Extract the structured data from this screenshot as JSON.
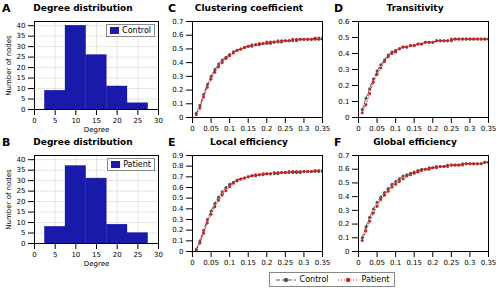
{
  "chart_data": [
    {
      "type": "histogram",
      "title": "Degree distribution",
      "annotations": [
        "A"
      ],
      "xlabel": "Degree",
      "ylabel": "Number of nodes",
      "bins": [
        2.5,
        7.5,
        12.5,
        17.5,
        22.5,
        27.5
      ],
      "series": [
        {
          "name": "Control",
          "color": "#1a1aaa",
          "values": [
            9,
            40,
            26,
            11,
            3
          ]
        }
      ],
      "xlim": [
        0,
        30
      ],
      "xticks": [
        0,
        5,
        10,
        15,
        20,
        25,
        30
      ],
      "ylim": [
        0,
        42
      ],
      "yticks": [
        0,
        5,
        10,
        15,
        20,
        25,
        30,
        35,
        40
      ],
      "grid": true,
      "legend": "upper right"
    },
    {
      "type": "histogram",
      "title": "Degree distribution",
      "annotations": [
        "B"
      ],
      "xlabel": "Degree",
      "ylabel": "Number of nodes",
      "bins": [
        2.5,
        7.5,
        12.5,
        17.5,
        22.5,
        27.5
      ],
      "series": [
        {
          "name": "Patient",
          "color": "#1a1aaa",
          "values": [
            8,
            37,
            31,
            9,
            5
          ]
        }
      ],
      "xlim": [
        0,
        30
      ],
      "xticks": [
        0,
        5,
        10,
        15,
        20,
        25,
        30
      ],
      "ylim": [
        0,
        42
      ],
      "yticks": [
        0,
        5,
        10,
        15,
        20,
        25,
        30,
        35,
        40
      ],
      "grid": true,
      "legend": "upper right"
    },
    {
      "type": "line",
      "title": "Clustering coefficient",
      "annotations": [
        "C"
      ],
      "x": [
        0.01,
        0.02,
        0.03,
        0.04,
        0.05,
        0.06,
        0.07,
        0.08,
        0.09,
        0.1,
        0.11,
        0.12,
        0.13,
        0.14,
        0.15,
        0.16,
        0.17,
        0.18,
        0.19,
        0.2,
        0.21,
        0.22,
        0.23,
        0.24,
        0.25,
        0.26,
        0.27,
        0.28,
        0.29,
        0.3,
        0.31,
        0.32,
        0.33,
        0.34,
        0.35
      ],
      "series": [
        {
          "name": "Control",
          "color": "#555555",
          "line_style": "dashed",
          "marker": "o",
          "values": [
            0.03,
            0.09,
            0.17,
            0.24,
            0.3,
            0.35,
            0.39,
            0.42,
            0.44,
            0.46,
            0.48,
            0.49,
            0.5,
            0.51,
            0.52,
            0.52,
            0.53,
            0.53,
            0.54,
            0.54,
            0.54,
            0.55,
            0.55,
            0.55,
            0.56,
            0.56,
            0.56,
            0.56,
            0.57,
            0.57,
            0.57,
            0.57,
            0.57,
            0.57,
            0.57
          ]
        },
        {
          "name": "Patient",
          "color": "#cc2222",
          "line_style": "dotted",
          "marker": "o",
          "values": [
            0.02,
            0.07,
            0.15,
            0.22,
            0.28,
            0.33,
            0.37,
            0.4,
            0.43,
            0.45,
            0.47,
            0.49,
            0.5,
            0.51,
            0.52,
            0.53,
            0.53,
            0.54,
            0.54,
            0.55,
            0.55,
            0.55,
            0.56,
            0.56,
            0.56,
            0.56,
            0.57,
            0.57,
            0.57,
            0.57,
            0.57,
            0.57,
            0.58,
            0.58,
            0.58
          ]
        }
      ],
      "xlim": [
        0,
        0.35
      ],
      "xticks": [
        0,
        0.05,
        0.1,
        0.15,
        0.2,
        0.25,
        0.3,
        0.35
      ],
      "ylim": [
        0,
        0.7
      ],
      "yticks": [
        0,
        0.1,
        0.2,
        0.3,
        0.4,
        0.5,
        0.6,
        0.7
      ],
      "grid": false,
      "legend": "lower center"
    },
    {
      "type": "line",
      "title": "Transitivity",
      "annotations": [
        "D"
      ],
      "x": [
        0.01,
        0.02,
        0.03,
        0.04,
        0.05,
        0.06,
        0.07,
        0.08,
        0.09,
        0.1,
        0.11,
        0.12,
        0.13,
        0.14,
        0.15,
        0.16,
        0.17,
        0.18,
        0.19,
        0.2,
        0.21,
        0.22,
        0.23,
        0.24,
        0.25,
        0.26,
        0.27,
        0.28,
        0.29,
        0.3,
        0.31,
        0.32,
        0.33,
        0.34,
        0.35
      ],
      "series": [
        {
          "name": "Control",
          "color": "#555555",
          "line_style": "dashed",
          "marker": "o",
          "values": [
            0.05,
            0.12,
            0.18,
            0.24,
            0.29,
            0.33,
            0.36,
            0.39,
            0.41,
            0.42,
            0.43,
            0.44,
            0.44,
            0.45,
            0.45,
            0.46,
            0.46,
            0.47,
            0.47,
            0.47,
            0.48,
            0.48,
            0.48,
            0.48,
            0.48,
            0.49,
            0.49,
            0.49,
            0.49,
            0.49,
            0.49,
            0.49,
            0.49,
            0.49,
            0.49
          ]
        },
        {
          "name": "Patient",
          "color": "#cc2222",
          "line_style": "dotted",
          "marker": "o",
          "values": [
            0.03,
            0.08,
            0.15,
            0.22,
            0.27,
            0.31,
            0.35,
            0.38,
            0.4,
            0.41,
            0.43,
            0.44,
            0.44,
            0.45,
            0.45,
            0.46,
            0.46,
            0.47,
            0.47,
            0.47,
            0.48,
            0.48,
            0.48,
            0.48,
            0.49,
            0.49,
            0.49,
            0.49,
            0.49,
            0.49,
            0.49,
            0.49,
            0.49,
            0.49,
            0.49
          ]
        }
      ],
      "xlim": [
        0,
        0.35
      ],
      "xticks": [
        0,
        0.05,
        0.1,
        0.15,
        0.2,
        0.25,
        0.3,
        0.35
      ],
      "ylim": [
        0,
        0.6
      ],
      "yticks": [
        0,
        0.1,
        0.2,
        0.3,
        0.4,
        0.5,
        0.6
      ],
      "grid": false,
      "legend": "lower center"
    },
    {
      "type": "line",
      "title": "Local efficiency",
      "annotations": [
        "E"
      ],
      "x": [
        0.01,
        0.02,
        0.03,
        0.04,
        0.05,
        0.06,
        0.07,
        0.08,
        0.09,
        0.1,
        0.11,
        0.12,
        0.13,
        0.14,
        0.15,
        0.16,
        0.17,
        0.18,
        0.19,
        0.2,
        0.21,
        0.22,
        0.23,
        0.24,
        0.25,
        0.26,
        0.27,
        0.28,
        0.29,
        0.3,
        0.31,
        0.32,
        0.33,
        0.34,
        0.35
      ],
      "series": [
        {
          "name": "Control",
          "color": "#555555",
          "line_style": "dashed",
          "marker": "o",
          "values": [
            0.02,
            0.1,
            0.2,
            0.3,
            0.38,
            0.45,
            0.51,
            0.56,
            0.6,
            0.63,
            0.65,
            0.67,
            0.68,
            0.69,
            0.7,
            0.71,
            0.71,
            0.72,
            0.72,
            0.73,
            0.73,
            0.73,
            0.73,
            0.74,
            0.74,
            0.74,
            0.74,
            0.74,
            0.74,
            0.75,
            0.75,
            0.75,
            0.75,
            0.75,
            0.75
          ]
        },
        {
          "name": "Patient",
          "color": "#cc2222",
          "line_style": "dotted",
          "marker": "o",
          "values": [
            0.01,
            0.08,
            0.17,
            0.27,
            0.35,
            0.42,
            0.48,
            0.53,
            0.57,
            0.61,
            0.64,
            0.66,
            0.68,
            0.69,
            0.7,
            0.71,
            0.72,
            0.72,
            0.73,
            0.73,
            0.73,
            0.74,
            0.74,
            0.74,
            0.74,
            0.75,
            0.75,
            0.75,
            0.75,
            0.75,
            0.75,
            0.75,
            0.76,
            0.76,
            0.76
          ]
        }
      ],
      "xlim": [
        0,
        0.35
      ],
      "xticks": [
        0,
        0.05,
        0.1,
        0.15,
        0.2,
        0.25,
        0.3,
        0.35
      ],
      "ylim": [
        0,
        0.9
      ],
      "yticks": [
        0,
        0.1,
        0.2,
        0.3,
        0.4,
        0.5,
        0.6,
        0.7,
        0.8,
        0.9
      ],
      "grid": false,
      "legend": "lower center"
    },
    {
      "type": "line",
      "title": "Global efficiency",
      "annotations": [
        "F"
      ],
      "x": [
        0.01,
        0.02,
        0.03,
        0.04,
        0.05,
        0.06,
        0.07,
        0.08,
        0.09,
        0.1,
        0.11,
        0.12,
        0.13,
        0.14,
        0.15,
        0.16,
        0.17,
        0.18,
        0.19,
        0.2,
        0.21,
        0.22,
        0.23,
        0.24,
        0.25,
        0.26,
        0.27,
        0.28,
        0.29,
        0.3,
        0.31,
        0.32,
        0.33,
        0.34,
        0.35
      ],
      "series": [
        {
          "name": "Control",
          "color": "#555555",
          "line_style": "dashed",
          "marker": "o",
          "values": [
            0.1,
            0.18,
            0.25,
            0.31,
            0.36,
            0.4,
            0.43,
            0.46,
            0.49,
            0.51,
            0.53,
            0.55,
            0.56,
            0.57,
            0.58,
            0.59,
            0.6,
            0.6,
            0.61,
            0.61,
            0.62,
            0.62,
            0.62,
            0.63,
            0.63,
            0.63,
            0.63,
            0.64,
            0.64,
            0.64,
            0.64,
            0.64,
            0.64,
            0.65,
            0.65
          ]
        },
        {
          "name": "Patient",
          "color": "#cc2222",
          "line_style": "dotted",
          "marker": "o",
          "values": [
            0.08,
            0.15,
            0.22,
            0.28,
            0.33,
            0.38,
            0.41,
            0.44,
            0.47,
            0.49,
            0.51,
            0.53,
            0.55,
            0.56,
            0.57,
            0.58,
            0.59,
            0.6,
            0.6,
            0.61,
            0.61,
            0.62,
            0.62,
            0.62,
            0.63,
            0.63,
            0.63,
            0.63,
            0.64,
            0.64,
            0.64,
            0.64,
            0.64,
            0.65,
            0.65
          ]
        }
      ],
      "xlim": [
        0,
        0.35
      ],
      "xticks": [
        0,
        0.05,
        0.1,
        0.15,
        0.2,
        0.25,
        0.3,
        0.35
      ],
      "ylim": [
        0,
        0.7
      ],
      "yticks": [
        0,
        0.1,
        0.2,
        0.3,
        0.4,
        0.5,
        0.6,
        0.7
      ],
      "grid": false,
      "legend": "lower center"
    }
  ]
}
